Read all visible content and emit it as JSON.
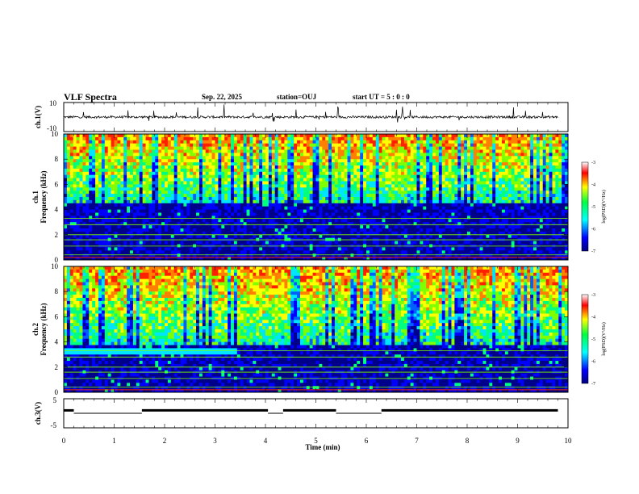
{
  "header": {
    "title": "VLF Spectra",
    "date": "Sep. 22, 2025",
    "station": "station=OUJ",
    "start": "start  UT =  5 : 0  : 0"
  },
  "colors": {
    "low": "#00008b",
    "mid": "#00e5ff",
    "mid2": "#7fff00",
    "high": "#ffff00",
    "peak": "#ff2000"
  },
  "chart_data": [
    {
      "type": "line",
      "name": "ch1",
      "ylabel": "ch.1(V)",
      "ylim": [
        -10,
        10
      ],
      "yticks": [
        "10",
        "-10"
      ],
      "baseline": 0,
      "x_range": [
        0,
        9.8
      ]
    },
    {
      "type": "heatmap",
      "name": "ch1-spectrogram",
      "ylabel_top": "ch.1",
      "ylabel": "Frequency  (kHz)",
      "ylim": [
        0,
        10
      ],
      "yticks": [
        "0",
        "2",
        "4",
        "6",
        "8",
        "10"
      ],
      "colorbar": {
        "label": "log(PSD)(V²/Hz)",
        "range": [
          -7,
          -3
        ],
        "ticks": [
          "-3",
          "-4",
          "-5",
          "-6",
          "-7"
        ]
      },
      "noise_top_khz": 4.6
    },
    {
      "type": "heatmap",
      "name": "ch2-spectrogram",
      "ylabel_top": "ch.2",
      "ylabel": "Frequency  (kHz)",
      "ylim": [
        0,
        10
      ],
      "yticks": [
        "0",
        "2",
        "4",
        "6",
        "8",
        "10"
      ],
      "colorbar": {
        "label": "log(PSD)(V²/Hz)",
        "range": [
          -7,
          -3
        ],
        "ticks": [
          "-3",
          "-4",
          "-5",
          "-6",
          "-7"
        ]
      },
      "noise_top_khz": 3.8
    },
    {
      "type": "line",
      "name": "ch3",
      "ylabel": "ch.3(V)",
      "ylim": [
        -5,
        5
      ],
      "yticks": [
        "5",
        "-5"
      ],
      "segments": [
        [
          0.0,
          0.2,
          1.0
        ],
        [
          0.2,
          1.55,
          0.0
        ],
        [
          1.55,
          4.05,
          1.0
        ],
        [
          4.05,
          4.35,
          0.0
        ],
        [
          4.35,
          5.4,
          1.0
        ],
        [
          5.4,
          6.3,
          0.0
        ],
        [
          6.3,
          9.8,
          1.0
        ]
      ],
      "xlabel": "Time  (min)",
      "xlim": [
        0,
        10
      ],
      "xticks": [
        "0",
        "1",
        "2",
        "3",
        "4",
        "5",
        "6",
        "7",
        "8",
        "9",
        "10"
      ]
    }
  ]
}
